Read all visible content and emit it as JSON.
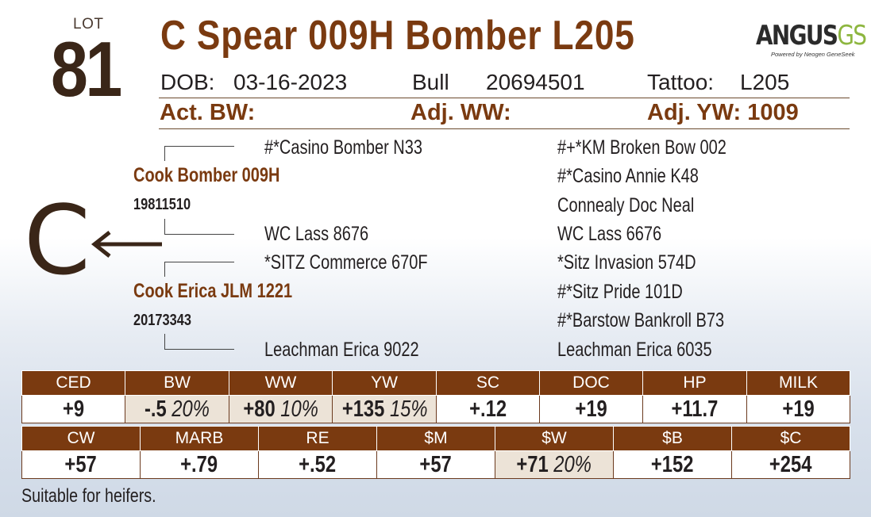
{
  "lot": {
    "label": "LOT",
    "number": "81"
  },
  "animal": {
    "name": "C Spear 009H Bomber L205",
    "dob_label": "DOB:",
    "dob": "03-16-2023",
    "sex": "Bull",
    "registration": "20694501",
    "tattoo_label": "Tattoo:",
    "tattoo": "L205"
  },
  "logo": {
    "main": "ANGUS",
    "accent": "GS",
    "tagline": "Powered by Neogen GeneSeek"
  },
  "stats": {
    "act_bw": "Act. BW:",
    "adj_ww": "Adj. WW:",
    "adj_yw": "Adj. YW: 1009"
  },
  "pedigree": {
    "sire": {
      "name": "Cook Bomber 009H",
      "reg": "19811510"
    },
    "dam": {
      "name": "Cook Erica JLM 1221",
      "reg": "20173343"
    },
    "sire_sire": "#*Casino Bomber N33",
    "sire_dam": "WC Lass 8676",
    "dam_sire": "*SITZ Commerce 670F",
    "dam_dam": "Leachman Erica 9022",
    "great": [
      "#+*KM Broken Bow 002",
      "#*Casino Annie K48",
      "Connealy Doc Neal",
      "WC Lass 6676",
      "*Sitz Invasion 574D",
      "#*Sitz Pride 101D",
      "#*Barstow Bankroll B73",
      "Leachman Erica 6035"
    ],
    "brand_letter": "C",
    "arrow": "left-arrow-icon"
  },
  "epd_row1": [
    {
      "label": "CED",
      "value": "+9",
      "pct": "",
      "highlight": false
    },
    {
      "label": "BW",
      "value": "-.5",
      "pct": "20%",
      "highlight": true
    },
    {
      "label": "WW",
      "value": "+80",
      "pct": "10%",
      "highlight": true
    },
    {
      "label": "YW",
      "value": "+135",
      "pct": "15%",
      "highlight": true
    },
    {
      "label": "SC",
      "value": "+.12",
      "pct": "",
      "highlight": false
    },
    {
      "label": "DOC",
      "value": "+19",
      "pct": "",
      "highlight": false
    },
    {
      "label": "HP",
      "value": "+11.7",
      "pct": "",
      "highlight": false
    },
    {
      "label": "MILK",
      "value": "+19",
      "pct": "",
      "highlight": false
    }
  ],
  "epd_row2": [
    {
      "label": "CW",
      "value": "+57",
      "pct": "",
      "highlight": false
    },
    {
      "label": "MARB",
      "value": "+.79",
      "pct": "",
      "highlight": false
    },
    {
      "label": "RE",
      "value": "+.52",
      "pct": "",
      "highlight": false
    },
    {
      "label": "$M",
      "value": "+57",
      "pct": "",
      "highlight": false
    },
    {
      "label": "$W",
      "value": "+71",
      "pct": "20%",
      "highlight": true
    },
    {
      "label": "$B",
      "value": "+152",
      "pct": "",
      "highlight": false
    },
    {
      "label": "$C",
      "value": "+254",
      "pct": "",
      "highlight": false
    }
  ],
  "footnote": "Suitable for heifers.",
  "colors": {
    "brown": "#7a3a10",
    "dark": "#3a2618",
    "highlight": "#ece3d7",
    "logo_green": "#8db63f"
  }
}
